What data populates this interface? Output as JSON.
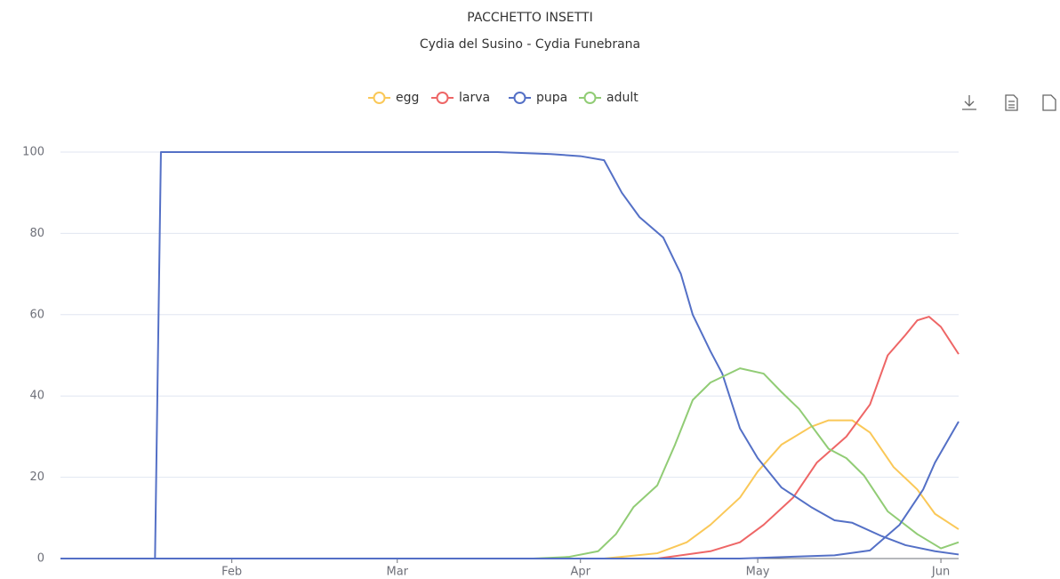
{
  "chart_data": {
    "type": "line",
    "title": "PACCHETTO INSETTI",
    "subtitle": "Cydia del Susino - Cydia Funebrana",
    "xlim": [
      3,
      155
    ],
    "xticks": [
      {
        "value": 32,
        "label": "Feb"
      },
      {
        "value": 60,
        "label": "Mar"
      },
      {
        "value": 91,
        "label": "Apr"
      },
      {
        "value": 121,
        "label": "May"
      },
      {
        "value": 152,
        "label": "Jun"
      }
    ],
    "ylim": [
      0,
      100
    ],
    "yticks": [
      0,
      20,
      40,
      60,
      80,
      100
    ],
    "grid": true,
    "legend": "top",
    "series": [
      {
        "name": "egg",
        "color": "#fac858",
        "x": [
          3,
          95,
          104,
          109,
          113,
          118,
          121,
          125,
          130,
          133,
          137,
          140,
          144,
          148,
          151,
          155
        ],
        "values": [
          0,
          0,
          1.3,
          4,
          8.3,
          15,
          21.4,
          28,
          32.4,
          34,
          34,
          31,
          22.5,
          17,
          11,
          7.2
        ]
      },
      {
        "name": "larva",
        "color": "#ee6666",
        "x": [
          3,
          104,
          113,
          118,
          122,
          127,
          131,
          136,
          140,
          143,
          146,
          148,
          150,
          152,
          155
        ],
        "values": [
          0,
          0,
          1.8,
          4,
          8.3,
          15,
          23.6,
          30,
          37.9,
          50,
          55,
          58.6,
          59.5,
          57,
          50.3
        ]
      },
      {
        "name": "pupa",
        "color": "#5470c6",
        "x": [
          3,
          19,
          20,
          77,
          86,
          91,
          95,
          98,
          101,
          105,
          108,
          110,
          113,
          115,
          118,
          121,
          125,
          130,
          134,
          137,
          142,
          146,
          151,
          155
        ],
        "values": [
          0,
          0,
          100,
          100,
          99.5,
          99,
          98,
          90,
          84,
          79,
          70,
          60,
          51,
          45.5,
          32,
          24.7,
          17.5,
          12.7,
          9.4,
          8.8,
          5.5,
          3.3,
          1.8,
          1
        ]
      },
      {
        "name": "adult",
        "color": "#91cc75",
        "x": [
          3,
          83,
          89,
          94,
          97,
          100,
          104,
          107,
          110,
          113,
          118,
          122,
          125,
          128,
          133,
          136,
          139,
          143,
          148,
          152,
          155
        ],
        "values": [
          0,
          0,
          0.4,
          1.8,
          6,
          12.7,
          18,
          28,
          39,
          43.3,
          46.8,
          45.5,
          41,
          36.8,
          27,
          24.7,
          20.4,
          11.6,
          6,
          2.5,
          4
        ]
      },
      {
        "name": "pupa",
        "color": "#5470c6",
        "x": [
          3,
          118,
          134,
          140,
          145,
          149,
          151,
          155
        ],
        "values": [
          0,
          0,
          0.8,
          2,
          8.3,
          17,
          23.6,
          33.7
        ]
      }
    ]
  }
}
